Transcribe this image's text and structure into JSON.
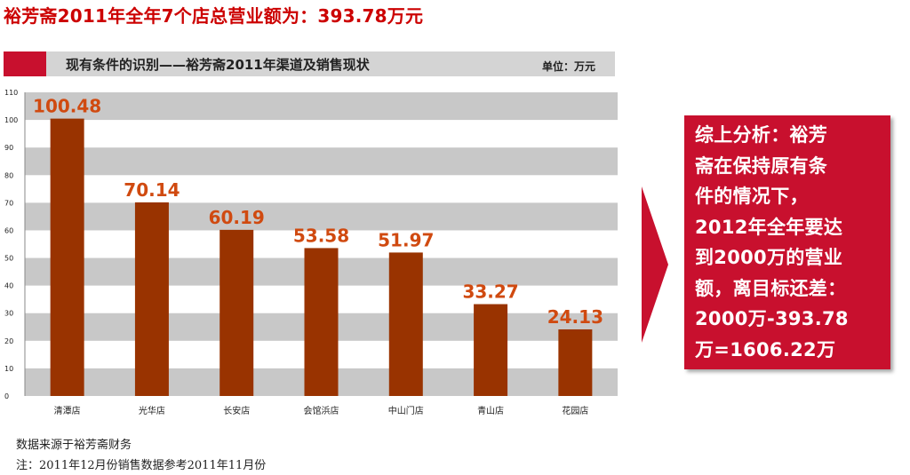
{
  "headline": "裕芳斋2011年全年7个店总营业额为：393.78万元",
  "header": {
    "title": "现有条件的识别——裕芳斋2011年渠道及销售现状",
    "unit": "单位：万元"
  },
  "footer": {
    "source": "数据来源于裕芳斋财务",
    "note": "注：2011年12月份销售数据参考2011年11月份"
  },
  "analysis": {
    "lines": [
      "综上分析：裕芳",
      "斋在保持原有条",
      "件的情况下，",
      "2012年全年要达",
      "到2000万的营业",
      "额，离目标还差：",
      "2000万-393.78",
      "万=1606.22万"
    ]
  },
  "colors": {
    "bar": "#993300",
    "label": "#d04a10",
    "band": "#c8c8c8",
    "accent": "#c8102e"
  },
  "chart_data": {
    "type": "bar",
    "categories": [
      "清潭店",
      "光华店",
      "长安店",
      "会馆浜店",
      "中山门店",
      "青山店",
      "花园店"
    ],
    "values": [
      100.48,
      70.14,
      60.19,
      53.58,
      51.97,
      33.27,
      24.13
    ],
    "value_labels": [
      "100.48",
      "70.14",
      "60.19",
      "53.58",
      "51.97",
      "33.27",
      "24.13"
    ],
    "ylim": [
      0,
      110
    ],
    "yticks": [
      0,
      10,
      20,
      30,
      40,
      50,
      60,
      70,
      80,
      90,
      100,
      110
    ],
    "grid": "alternating horizontal bands",
    "legend": "none"
  }
}
